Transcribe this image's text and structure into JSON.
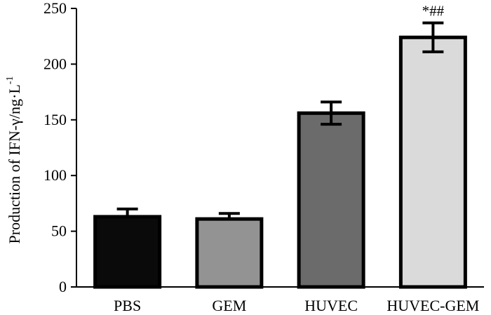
{
  "chart_data": {
    "type": "bar",
    "title": "",
    "xlabel": "",
    "ylabel": "Production of IFN-γ/ng·L",
    "ylabel_superscript": "-1",
    "ylim": [
      0,
      250
    ],
    "yticks": [
      "0",
      "50",
      "100",
      "150",
      "200",
      "250"
    ],
    "grid": false,
    "categories": [
      "PBS",
      "GEM",
      "HUVEC",
      "HUVEC-GEM"
    ],
    "values": [
      63,
      61,
      156,
      224
    ],
    "errors": [
      7,
      5,
      10,
      13
    ],
    "annotations": [
      "",
      "",
      "",
      "*##"
    ],
    "colors": [
      "#0a0a0a",
      "#939393",
      "#6b6b6b",
      "#dadada"
    ],
    "error_bar_style": [
      "upper",
      "upper",
      "both",
      "both"
    ]
  }
}
